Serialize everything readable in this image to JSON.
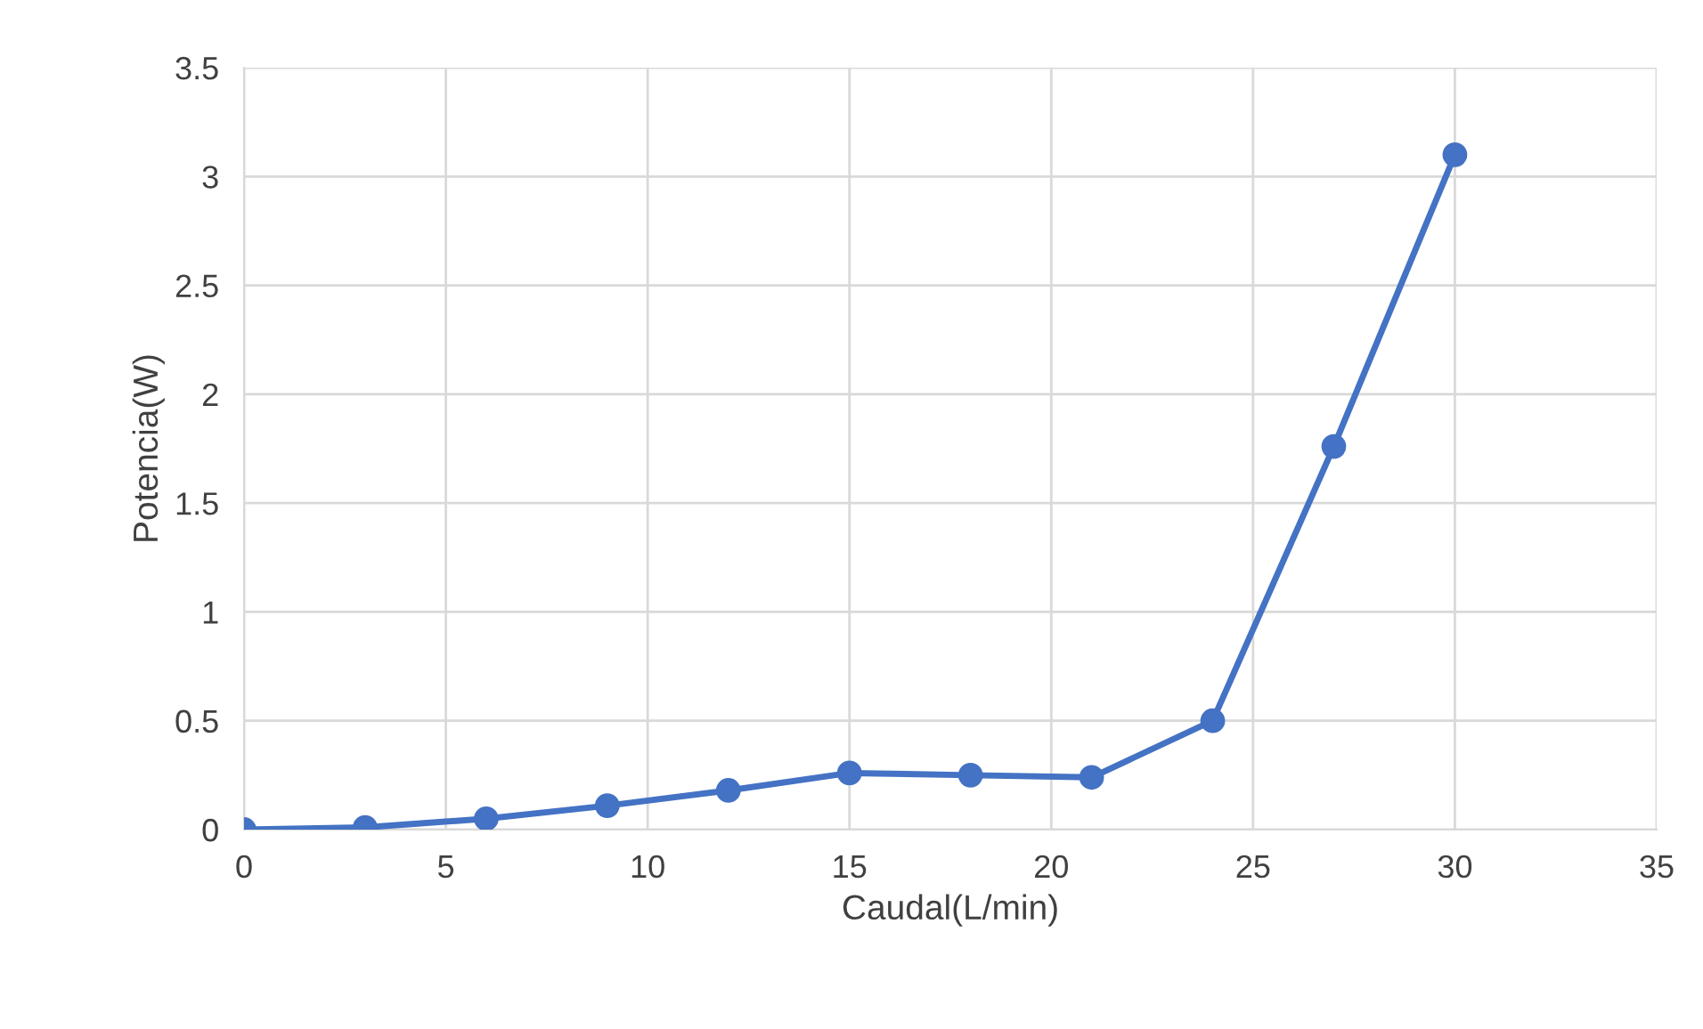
{
  "chart_data": {
    "type": "line",
    "xlabel": "Caudal(L/min)",
    "ylabel": "Potencia(W)",
    "x": [
      0,
      3,
      6,
      9,
      12,
      15,
      18,
      21,
      24,
      27,
      30
    ],
    "series": [
      {
        "color": "#4472c4",
        "values": [
          0,
          0.01,
          0.05,
          0.11,
          0.18,
          0.26,
          0.25,
          0.24,
          0.5,
          1.76,
          3.1
        ]
      }
    ],
    "xlim": [
      0,
      35
    ],
    "xticks": [
      0,
      5,
      10,
      15,
      20,
      25,
      30,
      35
    ],
    "ylim": [
      0,
      3.5
    ],
    "yticks": [
      0,
      0.5,
      1,
      1.5,
      2,
      2.5,
      3,
      3.5
    ],
    "grid": true,
    "marker": "circle",
    "line_style": "solid"
  }
}
